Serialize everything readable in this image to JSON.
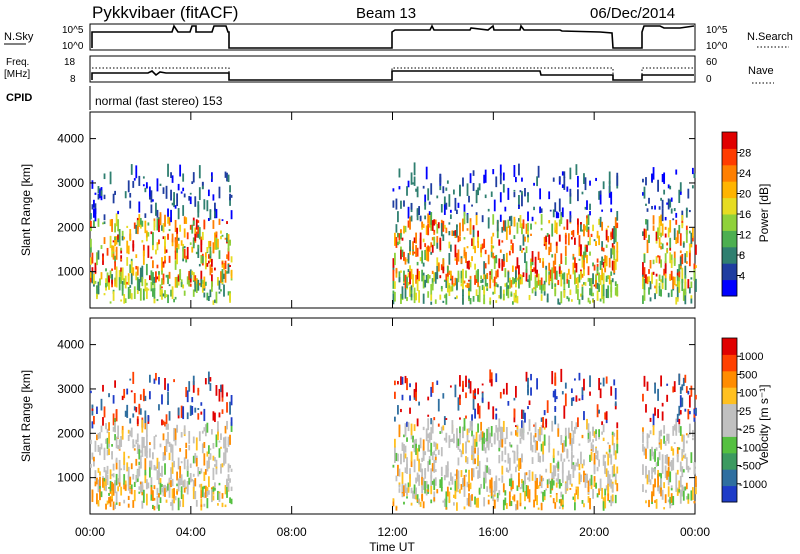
{
  "header": {
    "station": "Pykkvibaer (fitACF)",
    "beam": "Beam 13",
    "date": "06/Dec/2014"
  },
  "top_panels": {
    "nsky_label": "N.Sky",
    "nsky_ticks": [
      "10^5",
      "10^0"
    ],
    "nsearch_label": "N.Search",
    "nsearch_ticks": [
      "10^5",
      "10^0"
    ],
    "freq_label_line1": "Freq.",
    "freq_label_line2": "[MHz]",
    "freq_ticks": [
      "18",
      "8"
    ],
    "nave_label": "Nave",
    "nave_ticks": [
      "60",
      "0"
    ],
    "cpid_label": "CPID",
    "cpid_text": "normal (fast stereo) 153"
  },
  "chart_data": [
    {
      "type": "heatmap",
      "title": "",
      "ylabel": "Slant Range [km]",
      "ylim": [
        180,
        4600
      ],
      "y_ticks": [
        "4000",
        "3000",
        "2000",
        "1000"
      ],
      "colorbar_label": "Power [dB]",
      "colorbar_ticks": [
        "28",
        "24",
        "20",
        "16",
        "12",
        "8",
        "4"
      ],
      "colorbar_colors": [
        "#0000ff",
        "#1f3da0",
        "#2f7f70",
        "#4caf50",
        "#8fd13a",
        "#e6dc22",
        "#ffb400",
        "#ff7f00",
        "#ff3c00",
        "#e00000"
      ],
      "segments_ut_hours": [
        [
          0.0,
          5.6
        ],
        [
          12.0,
          20.9
        ],
        [
          21.9,
          24.0
        ]
      ]
    },
    {
      "type": "heatmap",
      "title": "",
      "xlabel": "Time UT",
      "ylabel": "Slant Range [km]",
      "ylim": [
        180,
        4600
      ],
      "xlim": [
        0,
        24
      ],
      "x_ticks": [
        "00:00",
        "04:00",
        "08:00",
        "12:00",
        "16:00",
        "20:00",
        "00:00"
      ],
      "y_ticks": [
        "4000",
        "3000",
        "2000",
        "1000"
      ],
      "colorbar_label": "Velocity [m s⁻¹]",
      "colorbar_ticks": [
        "1000",
        "500",
        "100",
        "25",
        "-25",
        "-100",
        "-500",
        "-1000"
      ],
      "colorbar_colors": [
        "#1e3cc8",
        "#2f6fa0",
        "#3c9a60",
        "#55c040",
        "#c0c0c0",
        "#c0c0c0",
        "#ffc020",
        "#ff8c00",
        "#ff4000",
        "#e00000"
      ],
      "segments_ut_hours": [
        [
          0.0,
          5.6
        ],
        [
          12.0,
          20.9
        ],
        [
          21.9,
          24.0
        ]
      ]
    }
  ]
}
